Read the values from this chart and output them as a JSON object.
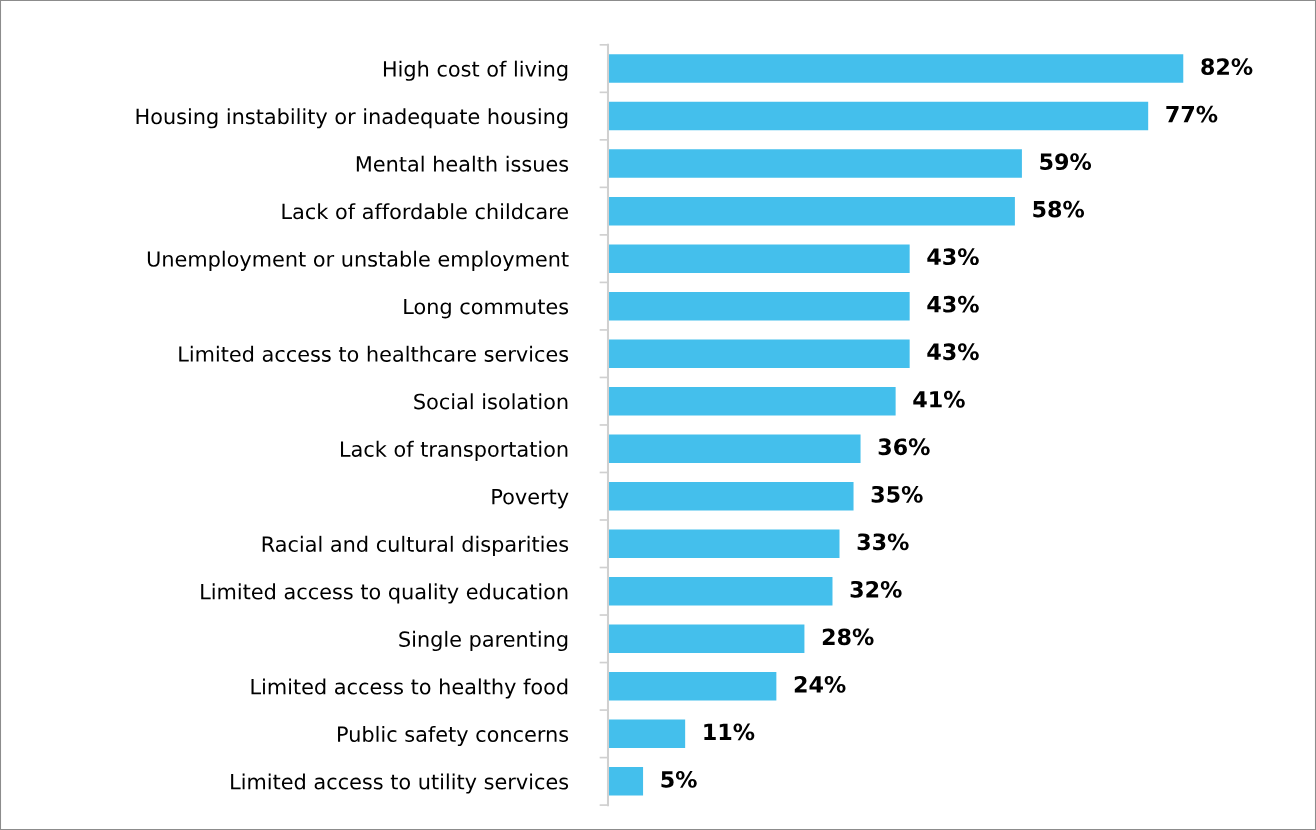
{
  "chart_data": {
    "type": "bar",
    "orientation": "horizontal",
    "categories": [
      "High cost of living",
      "Housing instability or inadequate housing",
      "Mental health issues",
      "Lack of affordable childcare",
      "Unemployment or unstable employment",
      "Long commutes",
      "Limited access to healthcare services",
      "Social isolation",
      "Lack of transportation",
      "Poverty",
      "Racial and cultural disparities",
      "Limited access to quality education",
      "Single parenting",
      "Limited access to healthy food",
      "Public safety concerns",
      "Limited access to utility services"
    ],
    "values": [
      82,
      77,
      59,
      58,
      43,
      43,
      43,
      41,
      36,
      35,
      33,
      32,
      28,
      24,
      11,
      5
    ],
    "value_labels": [
      "82%",
      "77%",
      "59%",
      "58%",
      "43%",
      "43%",
      "43%",
      "41%",
      "36%",
      "35%",
      "33%",
      "32%",
      "28%",
      "24%",
      "11%",
      "5%"
    ],
    "color": "#44bfec",
    "tick_labels": "y",
    "grid": false,
    "legend": false
  }
}
